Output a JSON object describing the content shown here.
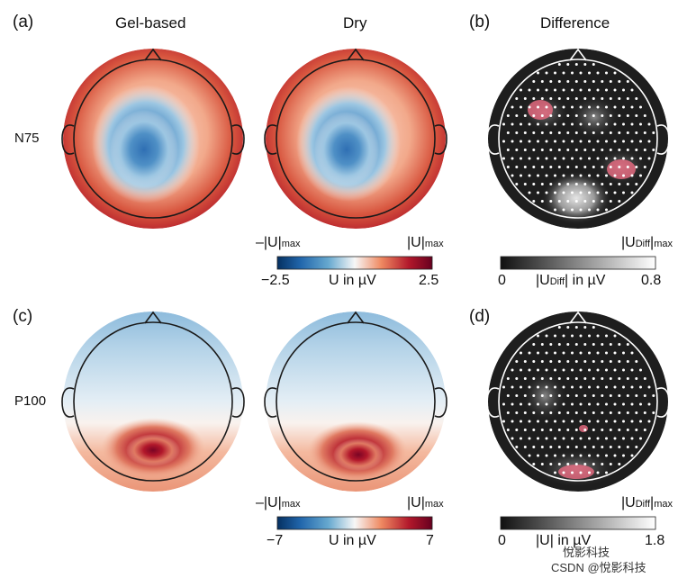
{
  "figure": {
    "panel_a": "(a)",
    "panel_b": "(b)",
    "panel_c": "(c)",
    "panel_d": "(d)",
    "col_gel": "Gel-based",
    "col_dry": "Dry",
    "col_diff": "Difference",
    "row_n75": "N75",
    "row_p100": "P100"
  },
  "colorbars": {
    "top_main": {
      "min_label": "−2.5",
      "max_label": "2.5",
      "unit_label": "U in µV",
      "left_header_main": "–|U|",
      "left_header_sub": "max",
      "right_header_main": "|U|",
      "right_header_sub": "max"
    },
    "top_diff": {
      "min_label": "0",
      "max_label": "0.8",
      "unit_pre": "|U",
      "unit_sub": "Diff",
      "unit_post": "| in µV",
      "header_main": "|U",
      "header_sub": "Diff",
      "header_post": "|",
      "header_sub2": "max"
    },
    "bottom_main": {
      "min_label": "−7",
      "max_label": "7",
      "unit_label": "U in µV",
      "left_header_main": "–|U|",
      "left_header_sub": "max",
      "right_header_main": "|U|",
      "right_header_sub": "max"
    },
    "bottom_diff": {
      "min_label": "0",
      "max_label": "1.8",
      "unit_pre": "|U",
      "unit_post": "| in µV",
      "header_main": "|U",
      "header_sub": "Diff",
      "header_post": "|",
      "header_sub2": "max"
    }
  },
  "watermark": {
    "line1": "悅影科技",
    "line2": "CSDN @悅影科技"
  },
  "colors": {
    "red_deep": "#67001f",
    "red": "#b2182b",
    "red_light": "#ef8a62",
    "white": "#f7f7f7",
    "blue_light": "#67a9cf",
    "blue": "#2166ac",
    "blue_deep": "#053061",
    "mask_pink": "#e0687e"
  }
}
